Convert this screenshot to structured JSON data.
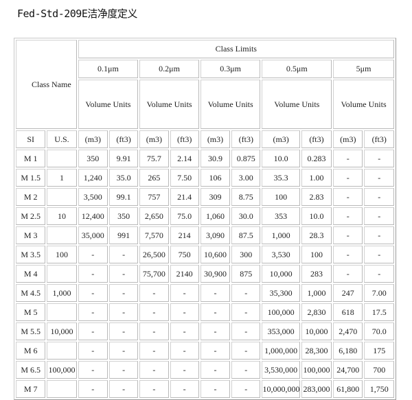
{
  "title": "Fed-Std-209E洁净度定义",
  "table": {
    "class_name": "Class Name",
    "class_limits": "Class Limits",
    "sizes": [
      "0.1μm",
      "0.2μm",
      "0.3μm",
      "0.5μm",
      "5μm"
    ],
    "volume_units": "Volume Units",
    "unit_headers": [
      "SI",
      "U.S.",
      "(m3)",
      "(ft3)",
      "(m3)",
      "(ft3)",
      "(m3)",
      "(ft3)",
      "(m3)",
      "(ft3)",
      "(m3)",
      "(ft3)"
    ],
    "rows": [
      [
        "M 1",
        "",
        "350",
        "9.91",
        "75.7",
        "2.14",
        "30.9",
        "0.875",
        "10.0",
        "0.283",
        "-",
        "-"
      ],
      [
        "M 1.5",
        "1",
        "1,240",
        "35.0",
        "265",
        "7.50",
        "106",
        "3.00",
        "35.3",
        "1.00",
        "-",
        "-"
      ],
      [
        "M 2",
        "",
        "3,500",
        "99.1",
        "757",
        "21.4",
        "309",
        "8.75",
        "100",
        "2.83",
        "-",
        "-"
      ],
      [
        "M 2.5",
        "10",
        "12,400",
        "350",
        "2,650",
        "75.0",
        "1,060",
        "30.0",
        "353",
        "10.0",
        "-",
        "-"
      ],
      [
        "M 3",
        "",
        "35,000",
        "991",
        "7,570",
        "214",
        "3,090",
        "87.5",
        "1,000",
        "28.3",
        "-",
        "-"
      ],
      [
        "M 3.5",
        "100",
        "-",
        "-",
        "26,500",
        "750",
        "10,600",
        "300",
        "3,530",
        "100",
        "-",
        "-"
      ],
      [
        "M 4",
        "",
        "-",
        "-",
        "75,700",
        "2140",
        "30,900",
        "875",
        "10,000",
        "283",
        "-",
        "-"
      ],
      [
        "M 4.5",
        "1,000",
        "-",
        "-",
        "-",
        "-",
        "-",
        "-",
        "35,300",
        "1,000",
        "247",
        "7.00"
      ],
      [
        "M 5",
        "",
        "-",
        "-",
        "-",
        "-",
        "-",
        "-",
        "100,000",
        "2,830",
        "618",
        "17.5"
      ],
      [
        "M 5.5",
        "10,000",
        "-",
        "-",
        "-",
        "-",
        "-",
        "-",
        "353,000",
        "10,000",
        "2,470",
        "70.0"
      ],
      [
        "M 6",
        "",
        "-",
        "-",
        "-",
        "-",
        "-",
        "-",
        "1,000,000",
        "28,300",
        "6,180",
        "175"
      ],
      [
        "M 6.5",
        "100,000",
        "-",
        "-",
        "-",
        "-",
        "-",
        "-",
        "3,530,000",
        "100,000",
        "24,700",
        "700"
      ],
      [
        "M 7",
        "",
        "-",
        "-",
        "-",
        "-",
        "-",
        "-",
        "10,000,000",
        "283,000",
        "61,800",
        "1,750"
      ]
    ]
  }
}
